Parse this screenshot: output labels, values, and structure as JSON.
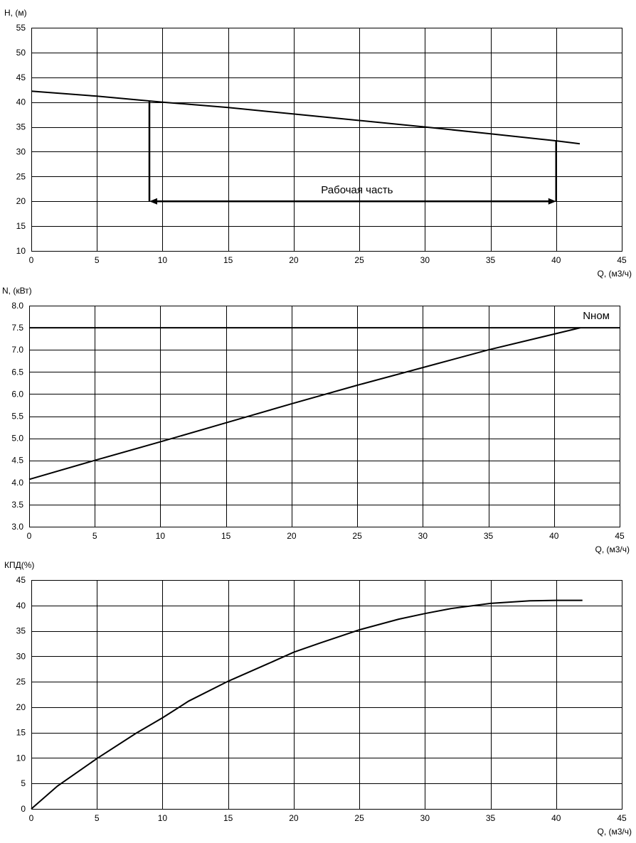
{
  "chart_data": [
    {
      "type": "line",
      "ylabel": "H, (м)",
      "xlabel": "Q, (м3/ч)",
      "xlim": [
        0,
        45
      ],
      "ylim": [
        10,
        55
      ],
      "xticks": [
        0,
        5,
        10,
        15,
        20,
        25,
        30,
        35,
        40,
        45
      ],
      "yticks": [
        10,
        15,
        20,
        25,
        30,
        35,
        40,
        45,
        50,
        55
      ],
      "grid": true,
      "series": [
        {
          "x": [
            0,
            5,
            10,
            15,
            20,
            25,
            30,
            35,
            40,
            41.8
          ],
          "y": [
            42.2,
            41.2,
            40.0,
            38.9,
            37.6,
            36.3,
            35.0,
            33.6,
            32.2,
            31.6
          ]
        }
      ],
      "annotations": [
        {
          "text": "Рабочая часть",
          "x_range": [
            9,
            40
          ],
          "y": 20,
          "marker_top_left": 40.2,
          "marker_top_right": 32.2
        }
      ]
    },
    {
      "type": "line",
      "ylabel": "N, (кВт)",
      "xlabel": "Q, (м3/ч)",
      "xlim": [
        0,
        45
      ],
      "ylim": [
        3.0,
        8.0
      ],
      "xticks": [
        0,
        5,
        10,
        15,
        20,
        25,
        30,
        35,
        40,
        45
      ],
      "yticks": [
        "3.0",
        "3.5",
        "4.0",
        "4.5",
        "5.0",
        "5.5",
        "6.0",
        "6.5",
        "7.0",
        "7.5",
        "8.0"
      ],
      "grid": true,
      "series": [
        {
          "x": [
            0,
            5,
            10,
            15,
            20,
            25,
            30,
            35,
            42
          ],
          "y": [
            4.07,
            4.5,
            4.92,
            5.35,
            5.78,
            6.2,
            6.6,
            7.0,
            7.5
          ]
        }
      ],
      "hline": {
        "label": "Nном",
        "y": 7.5
      }
    },
    {
      "type": "line",
      "ylabel": "КПД(%)",
      "xlabel": "Q, (м3/ч)",
      "xlim": [
        0,
        45
      ],
      "ylim": [
        0,
        45
      ],
      "xticks": [
        0,
        5,
        10,
        15,
        20,
        25,
        30,
        35,
        40,
        45
      ],
      "yticks": [
        0,
        5,
        10,
        15,
        20,
        25,
        30,
        35,
        40,
        45
      ],
      "grid": true,
      "series": [
        {
          "x": [
            0,
            2,
            5,
            8,
            10,
            12,
            15,
            18,
            20,
            22,
            25,
            28,
            30,
            32,
            35,
            38,
            40,
            42
          ],
          "y": [
            0,
            4.5,
            9.9,
            14.9,
            17.9,
            21.2,
            25.1,
            28.5,
            30.8,
            32.6,
            35.2,
            37.3,
            38.4,
            39.4,
            40.4,
            40.9,
            41.0,
            41.0
          ]
        }
      ]
    }
  ]
}
